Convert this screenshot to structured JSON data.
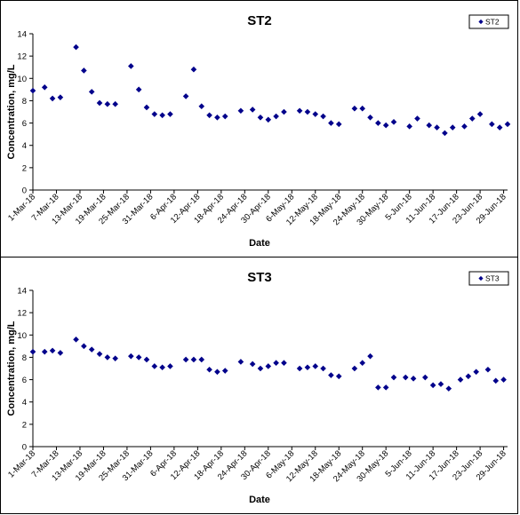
{
  "chart_data": [
    {
      "type": "scatter",
      "title": "ST2",
      "xlabel": "Date",
      "ylabel": "Concentration, mg/L",
      "ylim": [
        0,
        14
      ],
      "yticks": [
        0,
        2,
        4,
        6,
        8,
        10,
        12,
        14
      ],
      "xticks": [
        "1-Mar-18",
        "7-Mar-18",
        "13-Mar-18",
        "19-Mar-18",
        "25-Mar-18",
        "31-Mar-18",
        "6-Apr-18",
        "12-Apr-18",
        "18-Apr-18",
        "24-Apr-18",
        "30-Apr-18",
        "6-May-18",
        "12-May-18",
        "18-May-18",
        "24-May-18",
        "30-May-18",
        "5-Jun-18",
        "11-Jun-18",
        "17-Jun-18",
        "23-Jun-18",
        "29-Jun-18"
      ],
      "legend": "top-right",
      "grid": false,
      "marker_color": "#00008B",
      "series": [
        {
          "name": "ST2",
          "points": [
            [
              "1-Mar-18",
              8.9
            ],
            [
              "4-Mar-18",
              9.2
            ],
            [
              "6-Mar-18",
              8.2
            ],
            [
              "8-Mar-18",
              8.3
            ],
            [
              "12-Mar-18",
              12.8
            ],
            [
              "14-Mar-18",
              10.7
            ],
            [
              "16-Mar-18",
              8.8
            ],
            [
              "18-Mar-18",
              7.8
            ],
            [
              "20-Mar-18",
              7.7
            ],
            [
              "22-Mar-18",
              7.7
            ],
            [
              "26-Mar-18",
              11.1
            ],
            [
              "28-Mar-18",
              9.0
            ],
            [
              "30-Mar-18",
              7.4
            ],
            [
              "1-Apr-18",
              6.8
            ],
            [
              "3-Apr-18",
              6.7
            ],
            [
              "5-Apr-18",
              6.8
            ],
            [
              "9-Apr-18",
              8.4
            ],
            [
              "11-Apr-18",
              10.8
            ],
            [
              "13-Apr-18",
              7.5
            ],
            [
              "15-Apr-18",
              6.7
            ],
            [
              "17-Apr-18",
              6.5
            ],
            [
              "19-Apr-18",
              6.6
            ],
            [
              "23-Apr-18",
              7.1
            ],
            [
              "26-Apr-18",
              7.2
            ],
            [
              "28-Apr-18",
              6.5
            ],
            [
              "30-Apr-18",
              6.3
            ],
            [
              "2-May-18",
              6.6
            ],
            [
              "4-May-18",
              7.0
            ],
            [
              "8-May-18",
              7.1
            ],
            [
              "10-May-18",
              7.0
            ],
            [
              "12-May-18",
              6.8
            ],
            [
              "14-May-18",
              6.6
            ],
            [
              "16-May-18",
              6.0
            ],
            [
              "18-May-18",
              5.9
            ],
            [
              "22-May-18",
              7.3
            ],
            [
              "24-May-18",
              7.3
            ],
            [
              "26-May-18",
              6.5
            ],
            [
              "28-May-18",
              6.0
            ],
            [
              "30-May-18",
              5.8
            ],
            [
              "1-Jun-18",
              6.1
            ],
            [
              "5-Jun-18",
              5.7
            ],
            [
              "7-Jun-18",
              6.4
            ],
            [
              "10-Jun-18",
              5.8
            ],
            [
              "12-Jun-18",
              5.6
            ],
            [
              "14-Jun-18",
              5.1
            ],
            [
              "16-Jun-18",
              5.6
            ],
            [
              "19-Jun-18",
              5.7
            ],
            [
              "21-Jun-18",
              6.4
            ],
            [
              "23-Jun-18",
              6.8
            ],
            [
              "26-Jun-18",
              5.9
            ],
            [
              "28-Jun-18",
              5.6
            ],
            [
              "30-Jun-18",
              5.9
            ]
          ]
        }
      ]
    },
    {
      "type": "scatter",
      "title": "ST3",
      "xlabel": "Date",
      "ylabel": "Concentration, mg/L",
      "ylim": [
        0,
        14
      ],
      "yticks": [
        0,
        2,
        4,
        6,
        8,
        10,
        12,
        14
      ],
      "xticks": [
        "1-Mar-18",
        "7-Mar-18",
        "13-Mar-18",
        "19-Mar-18",
        "25-Mar-18",
        "31-Mar-18",
        "6-Apr-18",
        "12-Apr-18",
        "18-Apr-18",
        "24-Apr-18",
        "30-Apr-18",
        "6-May-18",
        "12-May-18",
        "18-May-18",
        "24-May-18",
        "30-May-18",
        "5-Jun-18",
        "11-Jun-18",
        "17-Jun-18",
        "23-Jun-18",
        "29-Jun-18"
      ],
      "legend": "top-right",
      "grid": false,
      "marker_color": "#00008B",
      "series": [
        {
          "name": "ST3",
          "points": [
            [
              "1-Mar-18",
              8.5
            ],
            [
              "4-Mar-18",
              8.5
            ],
            [
              "6-Mar-18",
              8.6
            ],
            [
              "8-Mar-18",
              8.4
            ],
            [
              "12-Mar-18",
              9.6
            ],
            [
              "14-Mar-18",
              9.0
            ],
            [
              "16-Mar-18",
              8.7
            ],
            [
              "18-Mar-18",
              8.3
            ],
            [
              "20-Mar-18",
              8.0
            ],
            [
              "22-Mar-18",
              7.9
            ],
            [
              "26-Mar-18",
              8.1
            ],
            [
              "28-Mar-18",
              8.0
            ],
            [
              "30-Mar-18",
              7.8
            ],
            [
              "1-Apr-18",
              7.2
            ],
            [
              "3-Apr-18",
              7.1
            ],
            [
              "5-Apr-18",
              7.2
            ],
            [
              "9-Apr-18",
              7.8
            ],
            [
              "11-Apr-18",
              7.8
            ],
            [
              "13-Apr-18",
              7.8
            ],
            [
              "15-Apr-18",
              6.9
            ],
            [
              "17-Apr-18",
              6.7
            ],
            [
              "19-Apr-18",
              6.8
            ],
            [
              "23-Apr-18",
              7.6
            ],
            [
              "26-Apr-18",
              7.4
            ],
            [
              "28-Apr-18",
              7.0
            ],
            [
              "30-Apr-18",
              7.2
            ],
            [
              "2-May-18",
              7.5
            ],
            [
              "4-May-18",
              7.5
            ],
            [
              "8-May-18",
              7.0
            ],
            [
              "10-May-18",
              7.1
            ],
            [
              "12-May-18",
              7.2
            ],
            [
              "14-May-18",
              7.0
            ],
            [
              "16-May-18",
              6.4
            ],
            [
              "18-May-18",
              6.3
            ],
            [
              "22-May-18",
              7.0
            ],
            [
              "24-May-18",
              7.5
            ],
            [
              "26-May-18",
              8.1
            ],
            [
              "28-May-18",
              5.3
            ],
            [
              "30-May-18",
              5.3
            ],
            [
              "1-Jun-18",
              6.2
            ],
            [
              "4-Jun-18",
              6.2
            ],
            [
              "6-Jun-18",
              6.1
            ],
            [
              "9-Jun-18",
              6.2
            ],
            [
              "11-Jun-18",
              5.5
            ],
            [
              "13-Jun-18",
              5.6
            ],
            [
              "15-Jun-18",
              5.2
            ],
            [
              "18-Jun-18",
              6.0
            ],
            [
              "20-Jun-18",
              6.3
            ],
            [
              "22-Jun-18",
              6.7
            ],
            [
              "25-Jun-18",
              6.9
            ],
            [
              "27-Jun-18",
              5.9
            ],
            [
              "29-Jun-18",
              6.0
            ]
          ]
        }
      ]
    }
  ]
}
